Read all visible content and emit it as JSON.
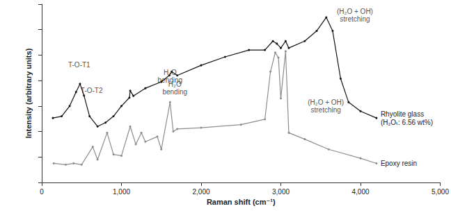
{
  "chart_data": {
    "type": "line",
    "x_label": "Raman shift (cm⁻¹)",
    "y_label": "Intensity (arbitrary units)",
    "xlim": [
      0,
      5000
    ],
    "xticks": [
      0,
      1000,
      2000,
      3000,
      4000,
      5000
    ],
    "ylim": [
      0,
      7
    ],
    "yticks": [
      0,
      1,
      2,
      3,
      4,
      5,
      6,
      7
    ],
    "tick_labels": "x",
    "grid": false,
    "series": [
      {
        "name": "Rhyolite glass\n(H₂Oₜ: 6.56 wt%)",
        "color": "#111111",
        "marker": "circle",
        "x": [
          140,
          250,
          350,
          430,
          480,
          530,
          600,
          700,
          800,
          900,
          1000,
          1100,
          1110,
          1150,
          1300,
          1500,
          1600,
          1630,
          1700,
          2000,
          2300,
          2600,
          2800,
          2900,
          2950,
          3000,
          3060,
          3100,
          3300,
          3450,
          3570,
          3650,
          3750,
          3850,
          4000,
          4200
        ],
        "values": [
          2.53,
          2.6,
          3.0,
          3.55,
          3.87,
          3.41,
          2.6,
          2.2,
          2.35,
          2.6,
          3.0,
          3.33,
          3.6,
          3.4,
          3.7,
          3.95,
          4.2,
          4.35,
          4.2,
          4.6,
          4.93,
          5.2,
          5.2,
          5.55,
          5.45,
          5.28,
          5.55,
          5.28,
          5.55,
          5.95,
          6.48,
          5.95,
          4.08,
          3.15,
          2.8,
          2.53
        ]
      },
      {
        "name": "Epoxy resin",
        "color": "#8c8c8c",
        "marker": "circle",
        "x": [
          150,
          300,
          400,
          500,
          640,
          700,
          820,
          900,
          1000,
          1110,
          1180,
          1250,
          1300,
          1450,
          1500,
          1610,
          1650,
          1700,
          2000,
          2500,
          2800,
          2870,
          2930,
          2970,
          3000,
          3060,
          3100,
          3300,
          3600,
          4000,
          4200
        ],
        "values": [
          0.75,
          0.7,
          0.75,
          0.7,
          1.4,
          0.9,
          1.95,
          1.1,
          1.05,
          2.2,
          1.5,
          1.95,
          1.6,
          1.8,
          1.3,
          3.15,
          2.0,
          2.1,
          2.15,
          2.27,
          2.48,
          4.35,
          5.1,
          4.9,
          3.3,
          5.15,
          1.95,
          1.7,
          1.3,
          0.95,
          0.75
        ]
      }
    ],
    "annotations": [
      {
        "text": "T-O-T1",
        "x": 470,
        "y": 4.48
      },
      {
        "text": "T-O-T2",
        "x": 626,
        "y": 3.47
      },
      {
        "text": "H₂O\nbending",
        "x": 1610,
        "y": 3.87
      },
      {
        "text": "(H₂O + OH)\nstretching",
        "x": 3930,
        "y": 6.27
      },
      {
        "text": "H₂O\nbending",
        "x": 1670,
        "y": 3.41
      },
      {
        "text": "(H₂O + OH)\nstretching",
        "x": 3565,
        "y": 2.7
      }
    ]
  }
}
